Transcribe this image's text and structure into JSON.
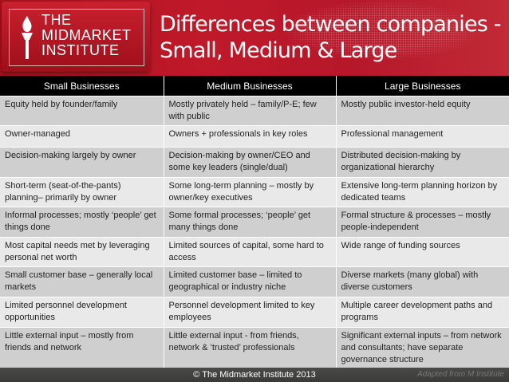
{
  "logo": {
    "lines": [
      "THE",
      "MIDMARKET",
      "INSTITUTE"
    ]
  },
  "title": {
    "line1": "Differences between companies -",
    "line2": "Small, Medium & Large"
  },
  "colors": {
    "banner": "#b5182a",
    "header_bg": "#000000",
    "row_dark": "#cfcfcf",
    "row_light": "#e9e9e9",
    "footer": "#40403e"
  },
  "table": {
    "headers": [
      "Small Businesses",
      "Medium Businesses",
      "Large Businesses"
    ],
    "rows": [
      [
        "Equity held by founder/family",
        "Mostly privately held – family/P-E; few with public",
        "Mostly public investor-held equity"
      ],
      [
        "Owner-managed",
        "Owners + professionals in key roles",
        "Professional management"
      ],
      [
        "Decision-making largely by owner",
        "Decision-making by owner/CEO and some key leaders (single/dual)",
        "Distributed decision-making by organizational hierarchy"
      ],
      [
        "Short-term (seat-of-the-pants) planning– primarily by owner",
        "Some long-term planning – mostly by owner/key executives",
        "Extensive long-term planning horizon by dedicated teams"
      ],
      [
        "Informal processes; mostly ‘people’ get things done",
        "Some formal processes; ‘people’ get many things done",
        "Formal structure & processes – mostly people-independent"
      ],
      [
        "Most capital needs met by leveraging personal net worth",
        "Limited sources of capital, some hard to access",
        "Wide range of funding sources"
      ],
      [
        "Small customer base – generally local markets",
        "Limited customer base – limited to geographical or industry niche",
        "Diverse markets (many global) with diverse customers"
      ],
      [
        "Limited personnel development opportunities",
        "Personnel development limited to key employees",
        "Multiple career development paths and programs"
      ],
      [
        "Little external input – mostly from friends and network",
        "Little external input - from friends, network & ‘trusted’ professionals",
        "Significant external inputs – from network and consultants; have separate governance structure"
      ]
    ]
  },
  "footer": {
    "copyright": "© The Midmarket Institute 2013",
    "credit": "Adapted from M Institute"
  }
}
